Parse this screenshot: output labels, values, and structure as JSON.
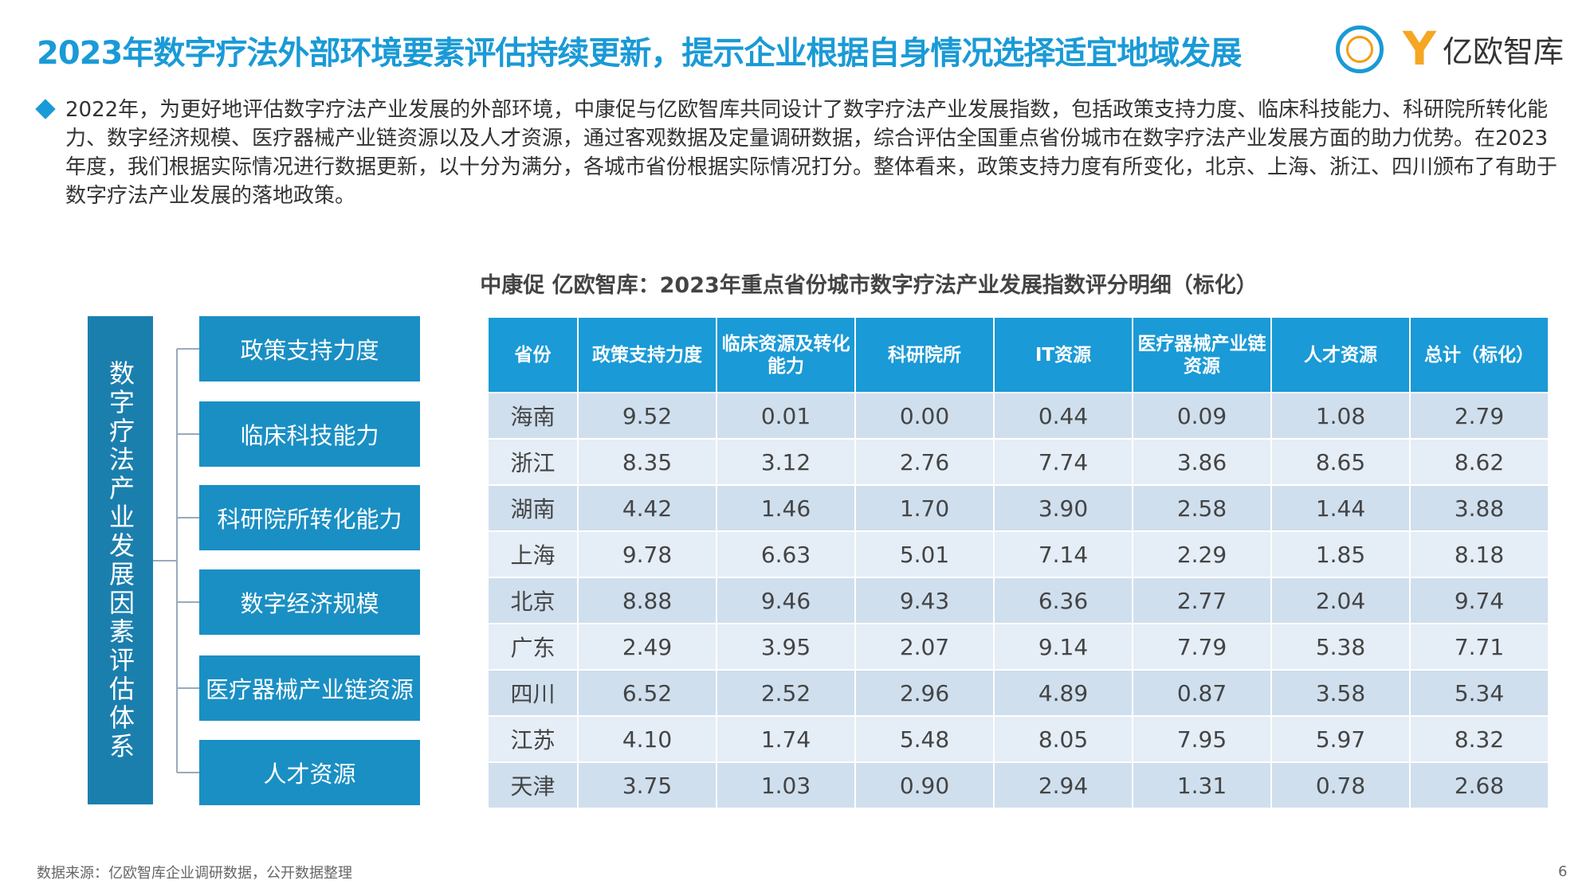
{
  "title": "2023年数字疗法外部环境要素评估持续更新，提示企业根据自身情况选择适宜地域发展",
  "logo_text": "亿欧智库",
  "paragraph": "2022年，为更好地评估数字疗法产业发展的外部环境，中康促与亿欧智库共同设计了数字疗法产业发展指数，包括政策支持力度、临床科技能力、科研院所转化能力、数字经济规模、医疗器械产业链资源以及人才资源，通过客观数据及定量调研数据，综合评估全国重点省份城市在数字疗法产业发展方面的助力优势。在2023年度，我们根据实际情况进行数据更新，以十分为满分，各城市省份根据实际情况打分。整体看来，政策支持力度有所变化，北京、上海、浙江、四川颁布了有助于数字疗法产业发展的落地政策。",
  "diagram": {
    "root": "数字疗法产业发展因素评估体系",
    "factors": [
      "政策支持力度",
      "临床科技能力",
      "科研院所转化能力",
      "数字经济规模",
      "医疗器械产业链资源",
      "人才资源"
    ]
  },
  "table_title": "中康促 亿欧智库：2023年重点省份城市数字疗法产业发展指数评分明细（标化）",
  "table": {
    "headers": [
      "省份",
      "政策支持力度",
      "临床资源及转化能力",
      "科研院所",
      "IT资源",
      "医疗器械产业链资源",
      "人才资源",
      "总计（标化）"
    ],
    "rows": [
      [
        "海南",
        "9.52",
        "0.01",
        "0.00",
        "0.44",
        "0.09",
        "1.08",
        "2.79"
      ],
      [
        "浙江",
        "8.35",
        "3.12",
        "2.76",
        "7.74",
        "3.86",
        "8.65",
        "8.62"
      ],
      [
        "湖南",
        "4.42",
        "1.46",
        "1.70",
        "3.90",
        "2.58",
        "1.44",
        "3.88"
      ],
      [
        "上海",
        "9.78",
        "6.63",
        "5.01",
        "7.14",
        "2.29",
        "1.85",
        "8.18"
      ],
      [
        "北京",
        "8.88",
        "9.46",
        "9.43",
        "6.36",
        "2.77",
        "2.04",
        "9.74"
      ],
      [
        "广东",
        "2.49",
        "3.95",
        "2.07",
        "9.14",
        "7.79",
        "5.38",
        "7.71"
      ],
      [
        "四川",
        "6.52",
        "2.52",
        "2.96",
        "4.89",
        "0.87",
        "3.58",
        "5.34"
      ],
      [
        "江苏",
        "4.10",
        "1.74",
        "5.48",
        "8.05",
        "7.95",
        "5.97",
        "8.32"
      ],
      [
        "天津",
        "3.75",
        "1.03",
        "0.90",
        "2.94",
        "1.31",
        "0.78",
        "2.68"
      ]
    ]
  },
  "footer": "数据来源：亿欧智库企业调研数据，公开数据整理",
  "page_number": "6"
}
